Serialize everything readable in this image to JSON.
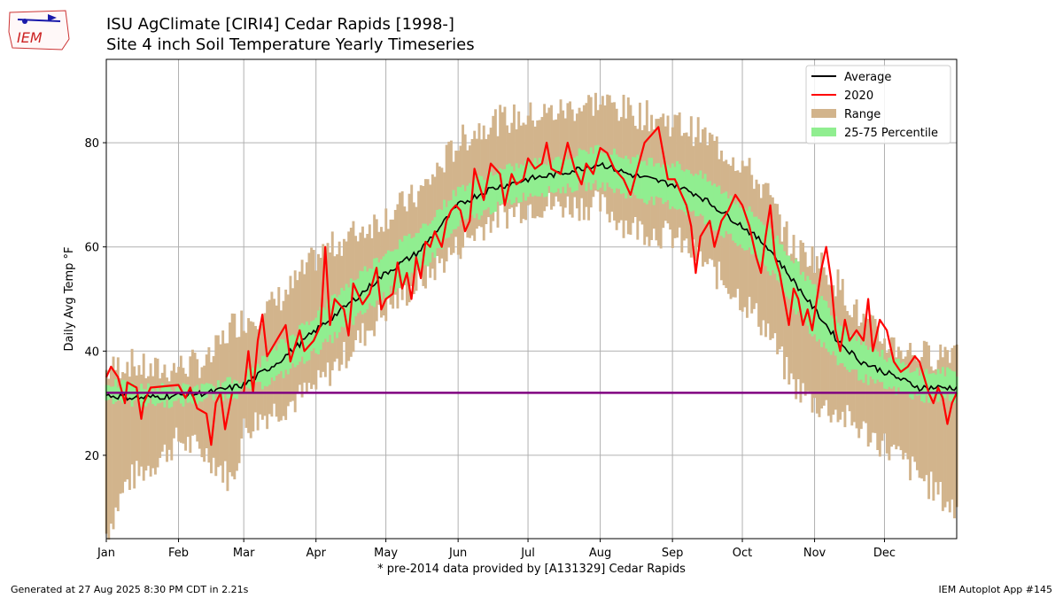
{
  "header": {
    "logo_text": "IEM",
    "title_line1": "ISU AgClimate [CIRI4] Cedar Rapids [1998-]",
    "title_line2": "Site 4 inch Soil Temperature Yearly Timeseries"
  },
  "footer": {
    "generated": "Generated at 27 Aug 2025 8:30 PM CDT in 2.21s",
    "app": "IEM Autoplot App #145"
  },
  "colors": {
    "average": "#000000",
    "year": "#ff0000",
    "range": "#d2b48c",
    "percentile": "#90ee90",
    "freezing_line": "#800080",
    "grid": "#b0b0b0"
  },
  "chart_data": {
    "type": "line",
    "xlabel": "* pre-2014 data provided by [A131329] Cedar Rapids",
    "ylabel": "Daily Avg Temp °F",
    "xlim": [
      1,
      366
    ],
    "ylim": [
      4,
      96
    ],
    "yticks": [
      20,
      40,
      60,
      80
    ],
    "month_ticks": [
      {
        "label": "Jan",
        "day": 1
      },
      {
        "label": "Feb",
        "day": 32
      },
      {
        "label": "Mar",
        "day": 60
      },
      {
        "label": "Apr",
        "day": 91
      },
      {
        "label": "May",
        "day": 121
      },
      {
        "label": "Jun",
        "day": 152
      },
      {
        "label": "Jul",
        "day": 182
      },
      {
        "label": "Aug",
        "day": 213
      },
      {
        "label": "Sep",
        "day": 244
      },
      {
        "label": "Oct",
        "day": 274
      },
      {
        "label": "Nov",
        "day": 305
      },
      {
        "label": "Dec",
        "day": 335
      }
    ],
    "grid": true,
    "legend": {
      "placement": "top-right",
      "entries": [
        {
          "label": "Average",
          "kind": "line",
          "series": "average"
        },
        {
          "label": "2020",
          "kind": "line",
          "series": "year"
        },
        {
          "label": "Range",
          "kind": "patch",
          "series": "range"
        },
        {
          "label": "25-75 Percentile",
          "kind": "patch",
          "series": "percentile"
        }
      ]
    },
    "freezing_line": 32,
    "series": {
      "average": [
        [
          1,
          31.5
        ],
        [
          15,
          31
        ],
        [
          32,
          31.5
        ],
        [
          45,
          32
        ],
        [
          60,
          33.5
        ],
        [
          75,
          38
        ],
        [
          91,
          44
        ],
        [
          105,
          49
        ],
        [
          121,
          55
        ],
        [
          135,
          59
        ],
        [
          152,
          68
        ],
        [
          165,
          71
        ],
        [
          182,
          73
        ],
        [
          195,
          74
        ],
        [
          213,
          76
        ],
        [
          225,
          74
        ],
        [
          244,
          72
        ],
        [
          255,
          70
        ],
        [
          274,
          64
        ],
        [
          285,
          60
        ],
        [
          295,
          54
        ],
        [
          305,
          48
        ],
        [
          315,
          42
        ],
        [
          325,
          38
        ],
        [
          335,
          36
        ],
        [
          350,
          33
        ],
        [
          366,
          33
        ]
      ],
      "year": [
        [
          1,
          35
        ],
        [
          3,
          37
        ],
        [
          6,
          35
        ],
        [
          9,
          30
        ],
        [
          10,
          34
        ],
        [
          14,
          33
        ],
        [
          16,
          27
        ],
        [
          17,
          30
        ],
        [
          20,
          33
        ],
        [
          32,
          33.5
        ],
        [
          35,
          31
        ],
        [
          37,
          33
        ],
        [
          40,
          29
        ],
        [
          44,
          28
        ],
        [
          46,
          22
        ],
        [
          48,
          30
        ],
        [
          50,
          32
        ],
        [
          52,
          25
        ],
        [
          55,
          32
        ],
        [
          60,
          32
        ],
        [
          62,
          40
        ],
        [
          64,
          32
        ],
        [
          66,
          42
        ],
        [
          68,
          47
        ],
        [
          70,
          39
        ],
        [
          74,
          42
        ],
        [
          78,
          45
        ],
        [
          80,
          38
        ],
        [
          84,
          44
        ],
        [
          86,
          40
        ],
        [
          90,
          42
        ],
        [
          91,
          43
        ],
        [
          93,
          45
        ],
        [
          95,
          60
        ],
        [
          97,
          45
        ],
        [
          99,
          50
        ],
        [
          103,
          48
        ],
        [
          105,
          43
        ],
        [
          107,
          53
        ],
        [
          111,
          49
        ],
        [
          114,
          51
        ],
        [
          117,
          56
        ],
        [
          119,
          48
        ],
        [
          121,
          50
        ],
        [
          124,
          51
        ],
        [
          126,
          57
        ],
        [
          128,
          52
        ],
        [
          130,
          55
        ],
        [
          132,
          50
        ],
        [
          134,
          58
        ],
        [
          136,
          54
        ],
        [
          138,
          61
        ],
        [
          140,
          60
        ],
        [
          142,
          63
        ],
        [
          145,
          60
        ],
        [
          147,
          65
        ],
        [
          149,
          67
        ],
        [
          151,
          68
        ],
        [
          153,
          67
        ],
        [
          155,
          63
        ],
        [
          157,
          65
        ],
        [
          159,
          75
        ],
        [
          161,
          72
        ],
        [
          163,
          69
        ],
        [
          166,
          76
        ],
        [
          170,
          74
        ],
        [
          172,
          68
        ],
        [
          175,
          74
        ],
        [
          177,
          72
        ],
        [
          180,
          73
        ],
        [
          182,
          77
        ],
        [
          185,
          75
        ],
        [
          188,
          76
        ],
        [
          190,
          80
        ],
        [
          192,
          75
        ],
        [
          196,
          74
        ],
        [
          199,
          80
        ],
        [
          202,
          75
        ],
        [
          205,
          72
        ],
        [
          207,
          76
        ],
        [
          210,
          74
        ],
        [
          213,
          79
        ],
        [
          216,
          78
        ],
        [
          219,
          75
        ],
        [
          223,
          73
        ],
        [
          226,
          70
        ],
        [
          229,
          75
        ],
        [
          232,
          80
        ],
        [
          236,
          82
        ],
        [
          238,
          83
        ],
        [
          240,
          78
        ],
        [
          242,
          73
        ],
        [
          245,
          73
        ],
        [
          248,
          70
        ],
        [
          250,
          68
        ],
        [
          252,
          64
        ],
        [
          254,
          55
        ],
        [
          256,
          62
        ],
        [
          260,
          65
        ],
        [
          262,
          60
        ],
        [
          265,
          65
        ],
        [
          268,
          67
        ],
        [
          271,
          70
        ],
        [
          274,
          68
        ],
        [
          277,
          64
        ],
        [
          280,
          58
        ],
        [
          282,
          55
        ],
        [
          284,
          62
        ],
        [
          286,
          68
        ],
        [
          288,
          58
        ],
        [
          290,
          55
        ],
        [
          292,
          50
        ],
        [
          294,
          45
        ],
        [
          296,
          52
        ],
        [
          298,
          50
        ],
        [
          300,
          45
        ],
        [
          302,
          48
        ],
        [
          304,
          44
        ],
        [
          306,
          50
        ],
        [
          308,
          56
        ],
        [
          310,
          60
        ],
        [
          312,
          54
        ],
        [
          314,
          44
        ],
        [
          316,
          40
        ],
        [
          318,
          46
        ],
        [
          320,
          42
        ],
        [
          323,
          44
        ],
        [
          326,
          42
        ],
        [
          328,
          50
        ],
        [
          330,
          40
        ],
        [
          333,
          46
        ],
        [
          336,
          44
        ],
        [
          339,
          38
        ],
        [
          342,
          36
        ],
        [
          345,
          37
        ],
        [
          348,
          39
        ],
        [
          350,
          38
        ],
        [
          352,
          35
        ],
        [
          354,
          32
        ],
        [
          356,
          30
        ],
        [
          358,
          33
        ],
        [
          360,
          31
        ],
        [
          362,
          26
        ],
        [
          364,
          30
        ],
        [
          366,
          32
        ]
      ],
      "range_low_hint": "range band: min/max per day",
      "range_band": [
        [
          1,
          5,
          36
        ],
        [
          10,
          15,
          38
        ],
        [
          20,
          18,
          36
        ],
        [
          32,
          23,
          37
        ],
        [
          45,
          20,
          38
        ],
        [
          55,
          15,
          45
        ],
        [
          60,
          25,
          46
        ],
        [
          70,
          28,
          48
        ],
        [
          80,
          30,
          52
        ],
        [
          91,
          33,
          58
        ],
        [
          105,
          40,
          62
        ],
        [
          121,
          48,
          66
        ],
        [
          135,
          53,
          70
        ],
        [
          152,
          60,
          80
        ],
        [
          165,
          65,
          84
        ],
        [
          182,
          68,
          85
        ],
        [
          195,
          68,
          86
        ],
        [
          213,
          68,
          88
        ],
        [
          225,
          64,
          86
        ],
        [
          244,
          62,
          84
        ],
        [
          255,
          58,
          82
        ],
        [
          274,
          50,
          76
        ],
        [
          285,
          44,
          70
        ],
        [
          295,
          34,
          60
        ],
        [
          305,
          30,
          58
        ],
        [
          315,
          28,
          53
        ],
        [
          325,
          25,
          46
        ],
        [
          335,
          22,
          42
        ],
        [
          345,
          18,
          40
        ],
        [
          355,
          14,
          39
        ],
        [
          366,
          9,
          41
        ]
      ],
      "pct_band": [
        [
          1,
          31,
          34
        ],
        [
          15,
          30,
          33
        ],
        [
          32,
          30,
          33
        ],
        [
          45,
          31,
          33
        ],
        [
          60,
          32,
          35
        ],
        [
          75,
          35,
          41
        ],
        [
          91,
          40,
          47
        ],
        [
          105,
          45,
          53
        ],
        [
          121,
          51,
          59
        ],
        [
          135,
          55,
          63
        ],
        [
          152,
          64,
          71
        ],
        [
          165,
          67,
          74
        ],
        [
          182,
          70,
          76
        ],
        [
          195,
          71,
          77
        ],
        [
          213,
          72,
          79
        ],
        [
          225,
          70,
          77
        ],
        [
          244,
          68,
          76
        ],
        [
          255,
          66,
          74
        ],
        [
          274,
          60,
          68
        ],
        [
          285,
          56,
          64
        ],
        [
          295,
          49,
          58
        ],
        [
          305,
          43,
          52
        ],
        [
          315,
          38,
          46
        ],
        [
          325,
          35,
          42
        ],
        [
          335,
          33,
          39
        ],
        [
          350,
          31,
          36
        ],
        [
          366,
          31,
          36
        ]
      ]
    }
  }
}
